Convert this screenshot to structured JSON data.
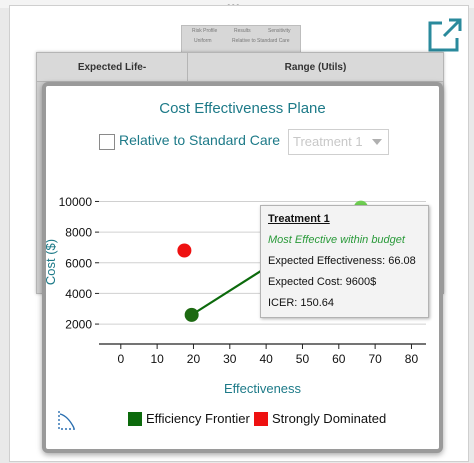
{
  "top_grip": "•••",
  "background_panel": {
    "mini_tabs": [
      "Risk Profile",
      "Results",
      "Sensitivity"
    ],
    "mini_row": [
      "Uniform",
      "Relative to Standard Care"
    ],
    "columns": [
      "Expected Life-",
      "Range (Utils)"
    ]
  },
  "modal": {
    "title": "Cost Effectiveness Plane",
    "checkbox_label": "Relative to Standard Care",
    "checkbox_checked": false,
    "dropdown_value": "Treatment 1"
  },
  "chart_data": {
    "type": "scatter",
    "title": "Cost Effectiveness Plane",
    "xlabel": "Effectiveness",
    "ylabel": "Cost ($)",
    "xlim": [
      -6,
      84
    ],
    "ylim": [
      700,
      11400
    ],
    "x_ticks": [
      0,
      10,
      20,
      30,
      40,
      50,
      60,
      70,
      80
    ],
    "y_ticks": [
      2000,
      4000,
      6000,
      8000,
      10000
    ],
    "grid": "horizontal",
    "points": [
      {
        "x": 17.5,
        "y": 6800,
        "category": "Strongly Dominated",
        "color": "#ee1111"
      },
      {
        "x": 19.5,
        "y": 2600,
        "category": "Efficiency Frontier",
        "color": "#1d6a12"
      },
      {
        "x": 66.08,
        "y": 9600,
        "category": "Efficiency Frontier",
        "color": "#6fcf52",
        "highlighted": true
      }
    ],
    "frontier_line": [
      [
        19.5,
        2600
      ],
      [
        66.08,
        9600
      ]
    ],
    "legend": [
      {
        "label": "Efficiency Frontier",
        "color": "#0c6a0c"
      },
      {
        "label": "Strongly Dominated",
        "color": "#ee1111"
      }
    ],
    "legend_position": "bottom",
    "tooltip": {
      "title": "Treatment 1",
      "status": "Most Effective within budget",
      "effectiveness": "Expected Effectiveness: 66.08",
      "cost": "Expected Cost: 9600$",
      "icer": "ICER: 150.64"
    }
  }
}
